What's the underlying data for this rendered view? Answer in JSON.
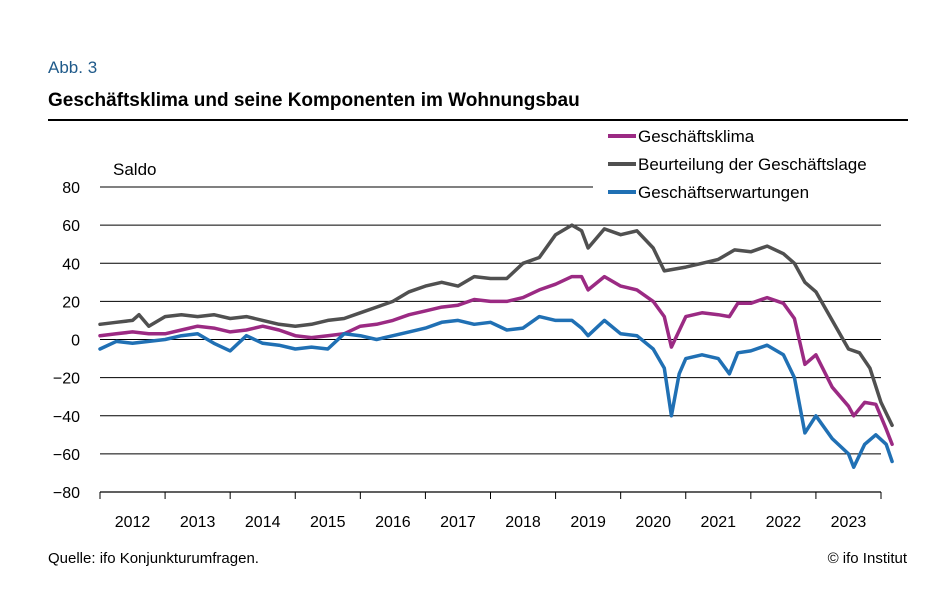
{
  "figure": {
    "label": "Abb. 3",
    "title": "Geschäftsklima und seine Komponenten im Wohnungsbau",
    "source": "Quelle: ifo Konjunkturumfragen.",
    "copyright": "© ifo Institut"
  },
  "chart_data": {
    "type": "line",
    "ylabel": "Saldo",
    "ylim": [
      -80,
      80
    ],
    "yticks": [
      80,
      60,
      40,
      20,
      0,
      -20,
      -40,
      -60,
      -80
    ],
    "ytick_labels": [
      "80",
      "60",
      "40",
      "20",
      "0",
      "−20",
      "−40",
      "−60",
      "−80"
    ],
    "xlim": [
      2011.5,
      2023.5
    ],
    "xticks": [
      2012,
      2013,
      2014,
      2015,
      2016,
      2017,
      2018,
      2019,
      2020,
      2021,
      2022,
      2023
    ],
    "grid": true,
    "legend_position": "top-right",
    "series": [
      {
        "name": "Geschäftsklima",
        "color": "#9b2a83",
        "points": [
          [
            2011.5,
            2
          ],
          [
            2011.75,
            3
          ],
          [
            2012.0,
            4
          ],
          [
            2012.25,
            3
          ],
          [
            2012.5,
            3
          ],
          [
            2012.75,
            5
          ],
          [
            2013.0,
            7
          ],
          [
            2013.25,
            6
          ],
          [
            2013.5,
            4
          ],
          [
            2013.75,
            5
          ],
          [
            2014.0,
            7
          ],
          [
            2014.25,
            5
          ],
          [
            2014.5,
            2
          ],
          [
            2014.75,
            1
          ],
          [
            2015.0,
            2
          ],
          [
            2015.25,
            3
          ],
          [
            2015.5,
            7
          ],
          [
            2015.75,
            8
          ],
          [
            2016.0,
            10
          ],
          [
            2016.25,
            13
          ],
          [
            2016.5,
            15
          ],
          [
            2016.75,
            17
          ],
          [
            2017.0,
            18
          ],
          [
            2017.25,
            21
          ],
          [
            2017.5,
            20
          ],
          [
            2017.75,
            20
          ],
          [
            2018.0,
            22
          ],
          [
            2018.25,
            26
          ],
          [
            2018.5,
            29
          ],
          [
            2018.75,
            33
          ],
          [
            2018.9,
            33
          ],
          [
            2019.0,
            26
          ],
          [
            2019.25,
            33
          ],
          [
            2019.5,
            28
          ],
          [
            2019.75,
            26
          ],
          [
            2020.0,
            20
          ],
          [
            2020.17,
            12
          ],
          [
            2020.28,
            -4
          ],
          [
            2020.5,
            12
          ],
          [
            2020.75,
            14
          ],
          [
            2021.0,
            13
          ],
          [
            2021.17,
            12
          ],
          [
            2021.3,
            19
          ],
          [
            2021.5,
            19
          ],
          [
            2021.75,
            22
          ],
          [
            2022.0,
            19
          ],
          [
            2022.17,
            11
          ],
          [
            2022.33,
            -13
          ],
          [
            2022.5,
            -8
          ],
          [
            2022.75,
            -25
          ],
          [
            2023.0,
            -35
          ],
          [
            2023.08,
            -40
          ],
          [
            2023.25,
            -33
          ],
          [
            2023.42,
            -34
          ],
          [
            2023.58,
            -47
          ],
          [
            2023.67,
            -55
          ]
        ]
      },
      {
        "name": "Beurteilung der Geschäftslage",
        "color": "#505050",
        "points": [
          [
            2011.5,
            8
          ],
          [
            2011.75,
            9
          ],
          [
            2012.0,
            10
          ],
          [
            2012.1,
            13
          ],
          [
            2012.25,
            7
          ],
          [
            2012.5,
            12
          ],
          [
            2012.75,
            13
          ],
          [
            2013.0,
            12
          ],
          [
            2013.25,
            13
          ],
          [
            2013.5,
            11
          ],
          [
            2013.75,
            12
          ],
          [
            2014.0,
            10
          ],
          [
            2014.25,
            8
          ],
          [
            2014.5,
            7
          ],
          [
            2014.75,
            8
          ],
          [
            2015.0,
            10
          ],
          [
            2015.25,
            11
          ],
          [
            2015.5,
            14
          ],
          [
            2015.75,
            17
          ],
          [
            2016.0,
            20
          ],
          [
            2016.25,
            25
          ],
          [
            2016.5,
            28
          ],
          [
            2016.75,
            30
          ],
          [
            2017.0,
            28
          ],
          [
            2017.25,
            33
          ],
          [
            2017.5,
            32
          ],
          [
            2017.75,
            32
          ],
          [
            2018.0,
            40
          ],
          [
            2018.25,
            43
          ],
          [
            2018.5,
            55
          ],
          [
            2018.75,
            60
          ],
          [
            2018.9,
            57
          ],
          [
            2019.0,
            48
          ],
          [
            2019.25,
            58
          ],
          [
            2019.5,
            55
          ],
          [
            2019.75,
            57
          ],
          [
            2020.0,
            48
          ],
          [
            2020.17,
            36
          ],
          [
            2020.5,
            38
          ],
          [
            2020.75,
            40
          ],
          [
            2021.0,
            42
          ],
          [
            2021.25,
            47
          ],
          [
            2021.5,
            46
          ],
          [
            2021.75,
            49
          ],
          [
            2022.0,
            45
          ],
          [
            2022.17,
            40
          ],
          [
            2022.33,
            30
          ],
          [
            2022.5,
            25
          ],
          [
            2022.75,
            10
          ],
          [
            2023.0,
            -5
          ],
          [
            2023.17,
            -7
          ],
          [
            2023.33,
            -15
          ],
          [
            2023.5,
            -33
          ],
          [
            2023.67,
            -45
          ]
        ]
      },
      {
        "name": "Geschäftserwartungen",
        "color": "#2070b4",
        "points": [
          [
            2011.5,
            -5
          ],
          [
            2011.75,
            -1
          ],
          [
            2012.0,
            -2
          ],
          [
            2012.25,
            -1
          ],
          [
            2012.5,
            0
          ],
          [
            2012.75,
            2
          ],
          [
            2013.0,
            3
          ],
          [
            2013.25,
            -2
          ],
          [
            2013.5,
            -6
          ],
          [
            2013.75,
            2
          ],
          [
            2014.0,
            -2
          ],
          [
            2014.25,
            -3
          ],
          [
            2014.5,
            -5
          ],
          [
            2014.75,
            -4
          ],
          [
            2015.0,
            -5
          ],
          [
            2015.25,
            3
          ],
          [
            2015.5,
            2
          ],
          [
            2015.75,
            0
          ],
          [
            2016.0,
            2
          ],
          [
            2016.25,
            4
          ],
          [
            2016.5,
            6
          ],
          [
            2016.75,
            9
          ],
          [
            2017.0,
            10
          ],
          [
            2017.25,
            8
          ],
          [
            2017.5,
            9
          ],
          [
            2017.75,
            5
          ],
          [
            2018.0,
            6
          ],
          [
            2018.25,
            12
          ],
          [
            2018.5,
            10
          ],
          [
            2018.75,
            10
          ],
          [
            2018.9,
            6
          ],
          [
            2019.0,
            2
          ],
          [
            2019.25,
            10
          ],
          [
            2019.5,
            3
          ],
          [
            2019.75,
            2
          ],
          [
            2020.0,
            -5
          ],
          [
            2020.17,
            -15
          ],
          [
            2020.28,
            -40
          ],
          [
            2020.4,
            -18
          ],
          [
            2020.5,
            -10
          ],
          [
            2020.75,
            -8
          ],
          [
            2021.0,
            -10
          ],
          [
            2021.17,
            -18
          ],
          [
            2021.3,
            -7
          ],
          [
            2021.5,
            -6
          ],
          [
            2021.75,
            -3
          ],
          [
            2022.0,
            -8
          ],
          [
            2022.17,
            -20
          ],
          [
            2022.33,
            -49
          ],
          [
            2022.5,
            -40
          ],
          [
            2022.75,
            -52
          ],
          [
            2023.0,
            -60
          ],
          [
            2023.08,
            -67
          ],
          [
            2023.25,
            -55
          ],
          [
            2023.42,
            -50
          ],
          [
            2023.58,
            -55
          ],
          [
            2023.67,
            -64
          ]
        ]
      }
    ]
  }
}
